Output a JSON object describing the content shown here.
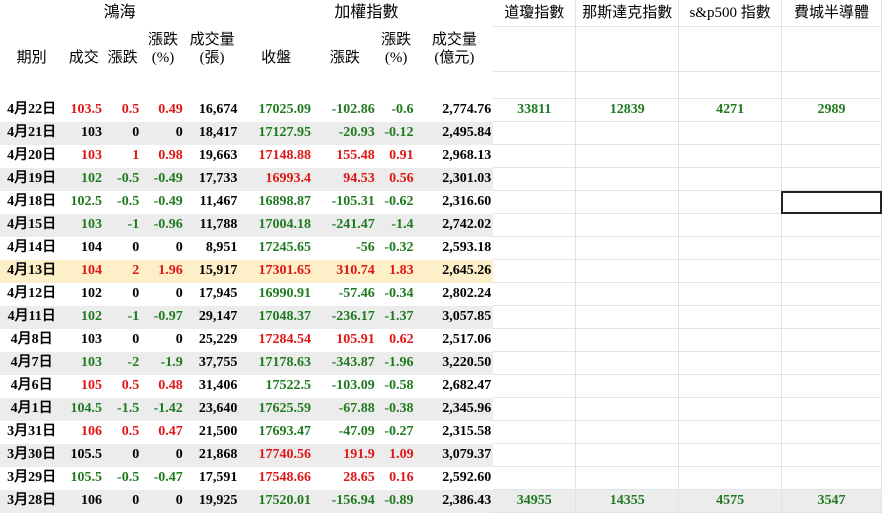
{
  "headers": {
    "group_honhai": "鴻海",
    "group_taiex": "加權指數",
    "dow": "道瓊指數",
    "nasdaq": "那斯達克指數",
    "sp500": "s&p500 指數",
    "sox": "費城半導體",
    "date": "期別",
    "price": "成交",
    "change": "漲跌",
    "pct_top": "漲跌",
    "pct_bottom": "(%)",
    "vol_top": "成交量",
    "vol_bottom": "(張)",
    "close": "收盤",
    "tchange": "漲跌",
    "tpct_top": "漲跌",
    "tpct_bottom": "(%)",
    "tvol_top": "成交量",
    "tvol_bottom": "(億元)"
  },
  "colors": {
    "up": "#e01515",
    "down": "#1f7a1f",
    "flat": "#000000",
    "shade": "#ececec",
    "highlight": "#fdefc8"
  },
  "rows": [
    {
      "date": "4月22日",
      "price": "103.5",
      "chg": "0.5",
      "pct": "0.49",
      "vol": "16,674",
      "close": "17025.09",
      "tchg": "-102.86",
      "tpct": "-0.6",
      "tvol": "2,774.76",
      "h": "r",
      "t": "g",
      "dow": "33811",
      "nasdaq": "12839",
      "sp500": "4271",
      "sox": "2989"
    },
    {
      "date": "4月21日",
      "price": "103",
      "chg": "0",
      "pct": "0",
      "vol": "18,417",
      "close": "17127.95",
      "tchg": "-20.93",
      "tpct": "-0.12",
      "tvol": "2,495.84",
      "h": "k",
      "t": "g",
      "dow": "",
      "nasdaq": "",
      "sp500": "",
      "sox": ""
    },
    {
      "date": "4月20日",
      "price": "103",
      "chg": "1",
      "pct": "0.98",
      "vol": "19,663",
      "close": "17148.88",
      "tchg": "155.48",
      "tpct": "0.91",
      "tvol": "2,968.13",
      "h": "r",
      "t": "r",
      "dow": "",
      "nasdaq": "",
      "sp500": "",
      "sox": ""
    },
    {
      "date": "4月19日",
      "price": "102",
      "chg": "-0.5",
      "pct": "-0.49",
      "vol": "17,733",
      "close": "16993.4",
      "tchg": "94.53",
      "tpct": "0.56",
      "tvol": "2,301.03",
      "h": "g",
      "t": "r",
      "dow": "",
      "nasdaq": "",
      "sp500": "",
      "sox": ""
    },
    {
      "date": "4月18日",
      "price": "102.5",
      "chg": "-0.5",
      "pct": "-0.49",
      "vol": "11,467",
      "close": "16898.87",
      "tchg": "-105.31",
      "tpct": "-0.62",
      "tvol": "2,316.60",
      "h": "g",
      "t": "g",
      "dow": "",
      "nasdaq": "",
      "sp500": "",
      "sox": ""
    },
    {
      "date": "4月15日",
      "price": "103",
      "chg": "-1",
      "pct": "-0.96",
      "vol": "11,788",
      "close": "17004.18",
      "tchg": "-241.47",
      "tpct": "-1.4",
      "tvol": "2,742.02",
      "h": "g",
      "t": "g",
      "dow": "",
      "nasdaq": "",
      "sp500": "",
      "sox": ""
    },
    {
      "date": "4月14日",
      "price": "104",
      "chg": "0",
      "pct": "0",
      "vol": "8,951",
      "close": "17245.65",
      "tchg": "-56",
      "tpct": "-0.32",
      "tvol": "2,593.18",
      "h": "k",
      "t": "g",
      "dow": "",
      "nasdaq": "",
      "sp500": "",
      "sox": ""
    },
    {
      "date": "4月13日",
      "price": "104",
      "chg": "2",
      "pct": "1.96",
      "vol": "15,917",
      "close": "17301.65",
      "tchg": "310.74",
      "tpct": "1.83",
      "tvol": "2,645.26",
      "h": "r",
      "t": "r",
      "dow": "",
      "nasdaq": "",
      "sp500": "",
      "sox": ""
    },
    {
      "date": "4月12日",
      "price": "102",
      "chg": "0",
      "pct": "0",
      "vol": "17,945",
      "close": "16990.91",
      "tchg": "-57.46",
      "tpct": "-0.34",
      "tvol": "2,802.24",
      "h": "k",
      "t": "g",
      "dow": "",
      "nasdaq": "",
      "sp500": "",
      "sox": ""
    },
    {
      "date": "4月11日",
      "price": "102",
      "chg": "-1",
      "pct": "-0.97",
      "vol": "29,147",
      "close": "17048.37",
      "tchg": "-236.17",
      "tpct": "-1.37",
      "tvol": "3,057.85",
      "h": "g",
      "t": "g",
      "dow": "",
      "nasdaq": "",
      "sp500": "",
      "sox": ""
    },
    {
      "date": "4月8日",
      "price": "103",
      "chg": "0",
      "pct": "0",
      "vol": "25,229",
      "close": "17284.54",
      "tchg": "105.91",
      "tpct": "0.62",
      "tvol": "2,517.06",
      "h": "k",
      "t": "r",
      "dow": "",
      "nasdaq": "",
      "sp500": "",
      "sox": ""
    },
    {
      "date": "4月7日",
      "price": "103",
      "chg": "-2",
      "pct": "-1.9",
      "vol": "37,755",
      "close": "17178.63",
      "tchg": "-343.87",
      "tpct": "-1.96",
      "tvol": "3,220.50",
      "h": "g",
      "t": "g",
      "dow": "",
      "nasdaq": "",
      "sp500": "",
      "sox": ""
    },
    {
      "date": "4月6日",
      "price": "105",
      "chg": "0.5",
      "pct": "0.48",
      "vol": "31,406",
      "close": "17522.5",
      "tchg": "-103.09",
      "tpct": "-0.58",
      "tvol": "2,682.47",
      "h": "r",
      "t": "g",
      "dow": "",
      "nasdaq": "",
      "sp500": "",
      "sox": ""
    },
    {
      "date": "4月1日",
      "price": "104.5",
      "chg": "-1.5",
      "pct": "-1.42",
      "vol": "23,640",
      "close": "17625.59",
      "tchg": "-67.88",
      "tpct": "-0.38",
      "tvol": "2,345.96",
      "h": "g",
      "t": "g",
      "dow": "",
      "nasdaq": "",
      "sp500": "",
      "sox": ""
    },
    {
      "date": "3月31日",
      "price": "106",
      "chg": "0.5",
      "pct": "0.47",
      "vol": "21,500",
      "close": "17693.47",
      "tchg": "-47.09",
      "tpct": "-0.27",
      "tvol": "2,315.58",
      "h": "r",
      "t": "g",
      "dow": "",
      "nasdaq": "",
      "sp500": "",
      "sox": ""
    },
    {
      "date": "3月30日",
      "price": "105.5",
      "chg": "0",
      "pct": "0",
      "vol": "21,868",
      "close": "17740.56",
      "tchg": "191.9",
      "tpct": "1.09",
      "tvol": "3,079.37",
      "h": "k",
      "t": "r",
      "dow": "",
      "nasdaq": "",
      "sp500": "",
      "sox": ""
    },
    {
      "date": "3月29日",
      "price": "105.5",
      "chg": "-0.5",
      "pct": "-0.47",
      "vol": "17,591",
      "close": "17548.66",
      "tchg": "28.65",
      "tpct": "0.16",
      "tvol": "2,592.60",
      "h": "g",
      "t": "r",
      "dow": "",
      "nasdaq": "",
      "sp500": "",
      "sox": ""
    },
    {
      "date": "3月28日",
      "price": "106",
      "chg": "0",
      "pct": "0",
      "vol": "19,925",
      "close": "17520.01",
      "tchg": "-156.94",
      "tpct": "-0.89",
      "tvol": "2,386.43",
      "h": "k",
      "t": "g",
      "dow": "34955",
      "nasdaq": "14355",
      "sp500": "4575",
      "sox": "3547"
    }
  ]
}
